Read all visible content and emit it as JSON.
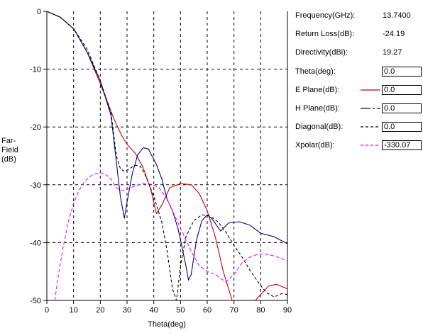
{
  "chart_data": {
    "type": "line",
    "xlabel": "Theta(deg)",
    "ylabel_lines": [
      "Far-",
      "Field",
      "(dB)"
    ],
    "xlim": [
      0,
      90
    ],
    "ylim": [
      -50,
      0
    ],
    "xticks": [
      0,
      10,
      20,
      30,
      40,
      50,
      60,
      70,
      80,
      90
    ],
    "yticks": [
      0,
      -10,
      -20,
      -30,
      -40,
      -50
    ],
    "grid": true,
    "series": [
      {
        "name": "E Plane(dB)",
        "color": "#cc0000",
        "style": "solid",
        "x": [
          0,
          5,
          10,
          15,
          20,
          25,
          28,
          30,
          33,
          36,
          39,
          41,
          43,
          46,
          50,
          54,
          57,
          60,
          63,
          66,
          70,
          73,
          76,
          78,
          80,
          83,
          86,
          90
        ],
        "y": [
          0,
          -1,
          -3,
          -7,
          -12.5,
          -18.5,
          -21.5,
          -23,
          -24.5,
          -27,
          -31,
          -35,
          -33.5,
          -30.5,
          -29.8,
          -30,
          -31.5,
          -34.5,
          -39,
          -45,
          -51,
          -54,
          -52,
          -50,
          -49,
          -47.5,
          -47.2,
          -48
        ]
      },
      {
        "name": "H Plane(dB)",
        "color": "#00008b",
        "style": "solid",
        "x": [
          0,
          5,
          10,
          15,
          20,
          24,
          26,
          27.5,
          29,
          30,
          32,
          34,
          36,
          38,
          41,
          43,
          45,
          47,
          49,
          50,
          52,
          53,
          54,
          56,
          58,
          60,
          62,
          65,
          68,
          72,
          76,
          80,
          85,
          90
        ],
        "y": [
          0,
          -1,
          -3,
          -7,
          -12,
          -18,
          -26,
          -32,
          -35.8,
          -33,
          -28,
          -24.8,
          -23.6,
          -23.8,
          -26.5,
          -29,
          -32.5,
          -34.5,
          -37.5,
          -39.5,
          -44,
          -46.5,
          -45.5,
          -39.5,
          -36.2,
          -35.2,
          -36,
          -38,
          -36.6,
          -36.4,
          -37,
          -38.4,
          -39,
          -40.2
        ]
      },
      {
        "name": "Diagonal(dB)",
        "color": "#000000",
        "style": "dashed",
        "x": [
          0,
          5,
          10,
          15,
          20,
          24,
          26,
          27.5,
          29,
          31,
          33,
          35,
          37,
          40,
          43,
          45,
          47,
          48.5,
          50,
          52,
          55,
          58,
          61,
          64,
          67,
          70,
          73,
          76,
          79,
          82,
          85,
          88,
          90
        ],
        "y": [
          0,
          -1,
          -3,
          -6.5,
          -12,
          -17.5,
          -25,
          -27.2,
          -27.7,
          -27.2,
          -26.6,
          -26.8,
          -28.5,
          -32,
          -36.5,
          -41.5,
          -48,
          -50,
          -44,
          -39,
          -36.2,
          -35.2,
          -35.4,
          -36.4,
          -38.2,
          -40.5,
          -42.5,
          -44.8,
          -46.8,
          -48.6,
          -49.4,
          -48.8,
          -49
        ]
      },
      {
        "name": "Xpolar(dB)",
        "color": "#ff00ff",
        "style": "dashed",
        "x": [
          3,
          4,
          6,
          8,
          10,
          12,
          14,
          16,
          18,
          20,
          22,
          24,
          26,
          28,
          30,
          33,
          36,
          39,
          42,
          45,
          48,
          51,
          54,
          57,
          60,
          63,
          65,
          67,
          70,
          73,
          76,
          79,
          82,
          85,
          88,
          90
        ],
        "y": [
          -50,
          -46.5,
          -41,
          -36.5,
          -33.2,
          -31,
          -29.5,
          -28.6,
          -28.1,
          -27.9,
          -28.2,
          -29,
          -30.5,
          -31,
          -30.8,
          -30.2,
          -29.8,
          -29.9,
          -30.5,
          -32.5,
          -35.5,
          -38.5,
          -41.5,
          -44,
          -45,
          -45.5,
          -46.2,
          -46.8,
          -45.5,
          -43.5,
          -42.5,
          -42,
          -42,
          -42.3,
          -42.8,
          -43.2
        ]
      }
    ]
  },
  "info": {
    "frequency_label": "Frequency(GHz):",
    "frequency_value": "13.7400",
    "return_loss_label": "Return Loss(dB):",
    "return_loss_value": "-24.19",
    "directivity_label": "Directivity(dBi):",
    "directivity_value": "19.27",
    "theta_label": "Theta(deg):",
    "theta_value": "0.0",
    "e_plane_label": "E Plane(dB):",
    "e_plane_value": "0.0",
    "h_plane_label": "H Plane(dB):",
    "h_plane_value": "0.0",
    "diagonal_label": "Diagonal(dB):",
    "diagonal_value": "0.0",
    "xpolar_label": "Xpolar(dB):",
    "xpolar_value": "-330.07"
  }
}
